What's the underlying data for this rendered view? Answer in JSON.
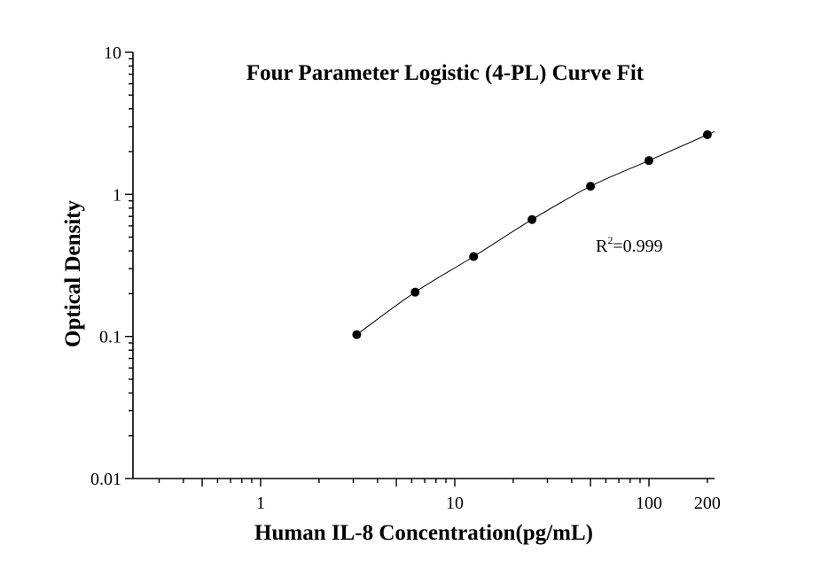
{
  "chart_data": {
    "type": "scatter",
    "title": "Four Parameter Logistic (4-PL) Curve Fit",
    "xlabel": "Human IL-8 Concentration(pg/mL)",
    "ylabel": "Optical Density",
    "x_scale": "log",
    "y_scale": "log",
    "xlim": [
      0.3,
      200
    ],
    "ylim": [
      0.01,
      10
    ],
    "x_tick_labels": [
      "1",
      "10",
      "100",
      "200"
    ],
    "x_tick_values": [
      1,
      10,
      100,
      200
    ],
    "y_tick_labels": [
      "0.01",
      "0.1",
      "1",
      "10"
    ],
    "y_tick_values": [
      0.01,
      0.1,
      1,
      10
    ],
    "grid": false,
    "series": [
      {
        "x": [
          3.125,
          6.25,
          12.5,
          25,
          50,
          100,
          200
        ],
        "y": [
          0.103,
          0.205,
          0.365,
          0.665,
          1.14,
          1.73,
          2.63
        ]
      }
    ],
    "fit": {
      "model": "4-PL",
      "show_curve": true
    },
    "annotation": {
      "r_prefix": "R",
      "r_sup": "2",
      "r_suffix": "=0.999"
    }
  }
}
